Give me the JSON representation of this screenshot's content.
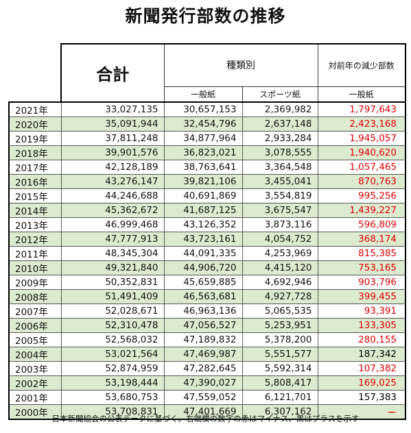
{
  "title": "新聞発行部数の推移",
  "table": {
    "header": {
      "total": "合計",
      "by_type": "種類別",
      "change": "対前年の減少部数",
      "general": "一般紙",
      "sports": "スポーツ紙",
      "change_general": "一般紙"
    },
    "row_colors": [
      "#ffffff",
      "#dcebd0"
    ],
    "rows": [
      [
        "2021年",
        "33,027,135",
        "30,657,153",
        "2,369,982",
        "1,797,643"
      ],
      [
        "2020年",
        "35,091,944",
        "32,454,796",
        "2,637,148",
        "2,423,168"
      ],
      [
        "2019年",
        "37,811,248",
        "34,877,964",
        "2,933,284",
        "1,945,057"
      ],
      [
        "2018年",
        "39,901,576",
        "36,823,021",
        "3,078,555",
        "1,940,620"
      ],
      [
        "2017年",
        "42,128,189",
        "38,763,641",
        "3,364,548",
        "1,057,465"
      ],
      [
        "2016年",
        "43,276,147",
        "39,821,106",
        "3,455,041",
        "870,763"
      ],
      [
        "2015年",
        "44,246,688",
        "40,691,869",
        "3,554,819",
        "995,256"
      ],
      [
        "2014年",
        "45,362,672",
        "41,687,125",
        "3,675,547",
        "1,439,227"
      ],
      [
        "2013年",
        "46,999,468",
        "43,126,352",
        "3,873,116",
        "596,809"
      ],
      [
        "2012年",
        "47,777,913",
        "43,723,161",
        "4,054,752",
        "368,174"
      ],
      [
        "2011年",
        "48,345,304",
        "44,091,335",
        "4,253,969",
        "815,385"
      ],
      [
        "2010年",
        "49,321,840",
        "44,906,720",
        "4,415,120",
        "753,165"
      ],
      [
        "2009年",
        "50,352,831",
        "45,659,885",
        "4,692,946",
        "903,796"
      ],
      [
        "2008年",
        "51,491,409",
        "46,563,681",
        "4,927,728",
        "399,455"
      ],
      [
        "2007年",
        "52,028,671",
        "46,963,136",
        "5,065,535",
        "93,391"
      ],
      [
        "2006年",
        "52,310,478",
        "47,056,527",
        "5,253,951",
        "133,305"
      ],
      [
        "2005年",
        "52,568,032",
        "47,189,832",
        "5,378,200",
        "280,155"
      ],
      [
        "2004年",
        "53,021,564",
        "47,469,987",
        "5,551,577",
        "187,342"
      ],
      [
        "2003年",
        "52,874,959",
        "47,282,645",
        "5,592,314",
        "107,382"
      ],
      [
        "2002年",
        "53,198,444",
        "47,390,027",
        "5,808,417",
        "169,025"
      ],
      [
        "2001年",
        "53,680,753",
        "47,559,052",
        "6,121,701",
        "157,383"
      ],
      [
        "2000年",
        "53,708,831",
        "47,401,669",
        "6,307,162",
        "ー"
      ]
    ],
    "change_colors": [
      "#e00000",
      "#e00000",
      "#e00000",
      "#e00000",
      "#e00000",
      "#e00000",
      "#e00000",
      "#e00000",
      "#e00000",
      "#e00000",
      "#e00000",
      "#e00000",
      "#e00000",
      "#e00000",
      "#e00000",
      "#e00000",
      "#e00000",
      "#000000",
      "#e00000",
      "#e00000",
      "#000000",
      "#e00000"
    ]
  },
  "note": "日本新聞協会の公表データに基づく。右端欄の数字の赤はマイナス、黒はプラスを示す"
}
